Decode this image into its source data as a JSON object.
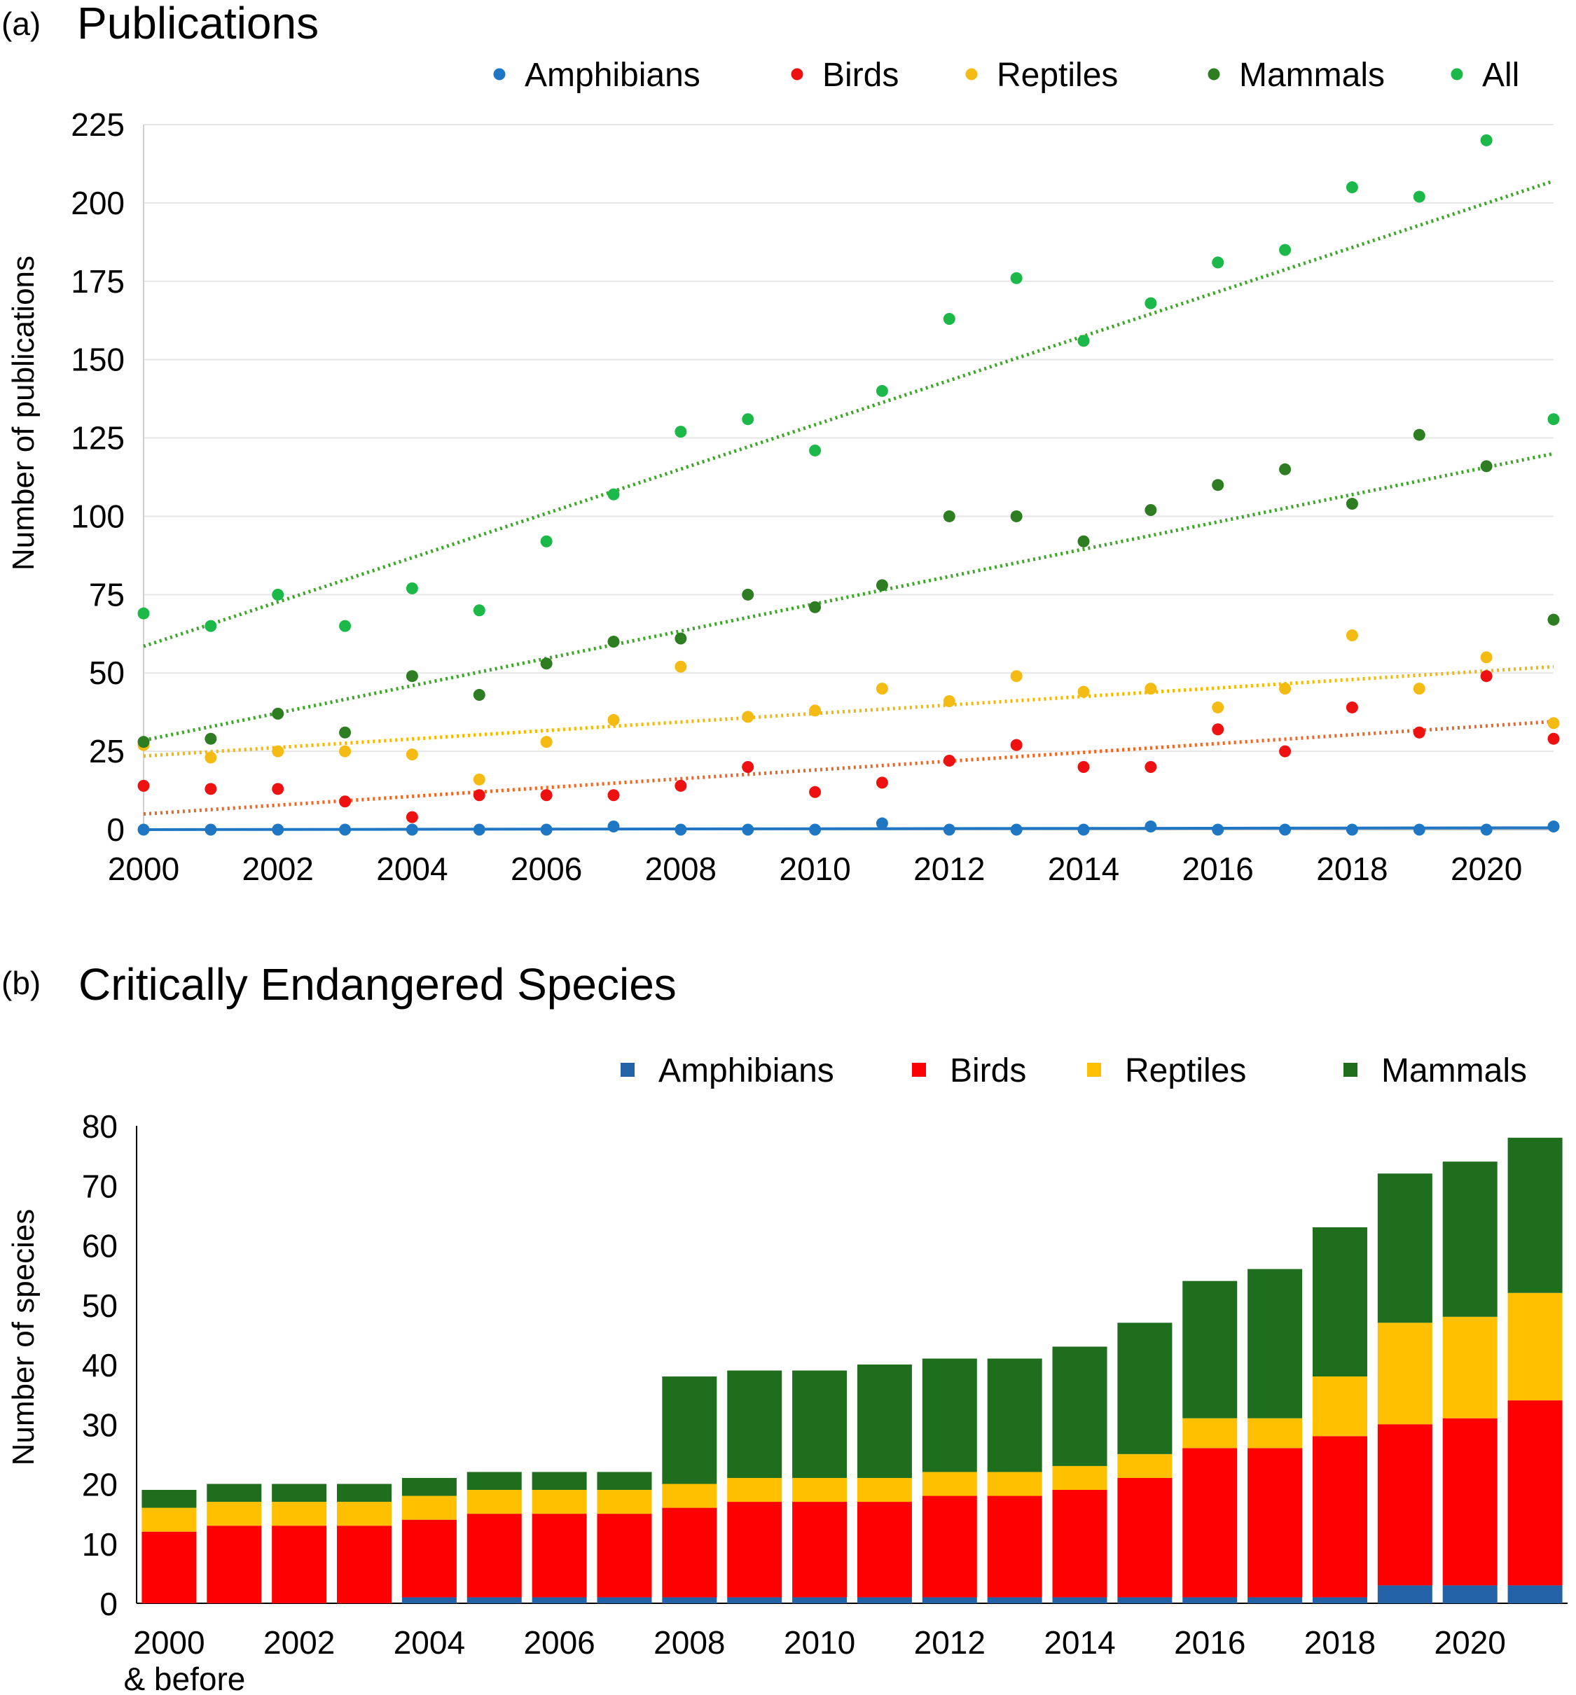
{
  "figure": {
    "panel_a": {
      "label": "(a)",
      "title": "Publications"
    },
    "panel_b": {
      "label": "(b)",
      "title": "Critically Endangered Species"
    }
  },
  "chart_data": [
    {
      "type": "scatter",
      "title": "Publications",
      "xlabel": "",
      "ylabel": "Number of publications",
      "xlim": [
        2000,
        2021
      ],
      "ylim": [
        0,
        225
      ],
      "yticks": [
        0,
        25,
        50,
        75,
        100,
        125,
        150,
        175,
        200,
        225
      ],
      "xticks": [
        2000,
        2002,
        2004,
        2006,
        2008,
        2010,
        2012,
        2014,
        2016,
        2018,
        2020
      ],
      "xtick_labels": [
        "2000",
        "2002",
        "2004",
        "2006",
        "2008",
        "2010",
        "2012",
        "2014",
        "2016",
        "2018",
        "2020"
      ],
      "x": [
        2000,
        2001,
        2002,
        2003,
        2004,
        2005,
        2006,
        2007,
        2008,
        2009,
        2010,
        2011,
        2012,
        2013,
        2014,
        2015,
        2016,
        2017,
        2018,
        2019,
        2020,
        2021
      ],
      "legend_position": "top",
      "series": [
        {
          "name": "Amphibians",
          "color": "#1f77c4",
          "values": [
            0,
            0,
            0,
            0,
            0,
            0,
            0,
            1,
            0,
            0,
            0,
            2,
            0,
            0,
            0,
            1,
            0,
            0,
            0,
            0,
            0,
            1
          ],
          "trend": {
            "start": 0,
            "end": 0.6,
            "color": "#1f77c4",
            "style": "solid"
          }
        },
        {
          "name": "Birds",
          "color": "#ee1111",
          "values": [
            14,
            13,
            13,
            9,
            4,
            11,
            11,
            11,
            14,
            20,
            12,
            15,
            22,
            27,
            20,
            20,
            32,
            25,
            39,
            31,
            49,
            29
          ],
          "trend": {
            "start": 5,
            "end": 34.5,
            "color": "#ee6622",
            "style": "dotted"
          }
        },
        {
          "name": "Reptiles",
          "color": "#f5bb15",
          "values": [
            27,
            23,
            25,
            25,
            24,
            16,
            28,
            35,
            52,
            36,
            38,
            45,
            41,
            49,
            44,
            45,
            39,
            45,
            62,
            45,
            55,
            34
          ],
          "trend": {
            "start": 23.5,
            "end": 52,
            "color": "#f5b800",
            "style": "dotted"
          }
        },
        {
          "name": "Mammals",
          "color": "#2e7d22",
          "values": [
            28,
            29,
            37,
            31,
            49,
            43,
            53,
            60,
            61,
            75,
            71,
            78,
            100,
            100,
            92,
            102,
            110,
            115,
            104,
            126,
            116,
            67
          ],
          "trend": {
            "start": 28.5,
            "end": 120,
            "color": "#3ea62a",
            "style": "dotted"
          }
        },
        {
          "name": "All",
          "color": "#1cb84a",
          "values": [
            69,
            65,
            75,
            65,
            77,
            70,
            92,
            107,
            127,
            131,
            121,
            140,
            163,
            176,
            156,
            168,
            181,
            185,
            205,
            202,
            220,
            131
          ],
          "trend": {
            "start": 58.5,
            "end": 207,
            "color": "#3ea62a",
            "style": "dotted"
          }
        }
      ]
    },
    {
      "type": "bar",
      "stacked": true,
      "title": "Critically Endangered Species",
      "xlabel": "",
      "ylabel": "Number of species",
      "ylim": [
        0,
        80
      ],
      "yticks": [
        0,
        10,
        20,
        30,
        40,
        50,
        60,
        70,
        80
      ],
      "categories": [
        "2000 & before",
        "2001",
        "2002",
        "2003",
        "2004",
        "2005",
        "2006",
        "2007",
        "2008",
        "2009",
        "2010",
        "2011",
        "2012",
        "2013",
        "2014",
        "2015",
        "2016",
        "2017",
        "2018",
        "2019",
        "2020",
        "2021"
      ],
      "xtick_labels": [
        "2000",
        "",
        "2002",
        "",
        "2004",
        "",
        "2006",
        "",
        "2008",
        "",
        "2010",
        "",
        "2012",
        "",
        "2014",
        "",
        "2016",
        "",
        "2018",
        "",
        "2020",
        ""
      ],
      "xtick_sublabel": "& before",
      "legend_position": "top-right",
      "series": [
        {
          "name": "Amphibians",
          "color": "#2462a8",
          "values": [
            0,
            0,
            0,
            0,
            1,
            1,
            1,
            1,
            1,
            1,
            1,
            1,
            1,
            1,
            1,
            1,
            1,
            1,
            1,
            3,
            3,
            3
          ]
        },
        {
          "name": "Birds",
          "color": "#ff0000",
          "values": [
            12,
            13,
            13,
            13,
            13,
            14,
            14,
            14,
            15,
            16,
            16,
            16,
            17,
            17,
            18,
            20,
            25,
            25,
            27,
            27,
            28,
            31
          ]
        },
        {
          "name": "Reptiles",
          "color": "#ffc000",
          "values": [
            4,
            4,
            4,
            4,
            4,
            4,
            4,
            4,
            4,
            4,
            4,
            4,
            4,
            4,
            4,
            4,
            5,
            5,
            10,
            17,
            17,
            18
          ]
        },
        {
          "name": "Mammals",
          "color": "#1e6e1e",
          "values": [
            3,
            3,
            3,
            3,
            3,
            3,
            3,
            3,
            18,
            18,
            18,
            19,
            19,
            19,
            20,
            22,
            23,
            25,
            25,
            25,
            26,
            26
          ]
        }
      ]
    }
  ]
}
